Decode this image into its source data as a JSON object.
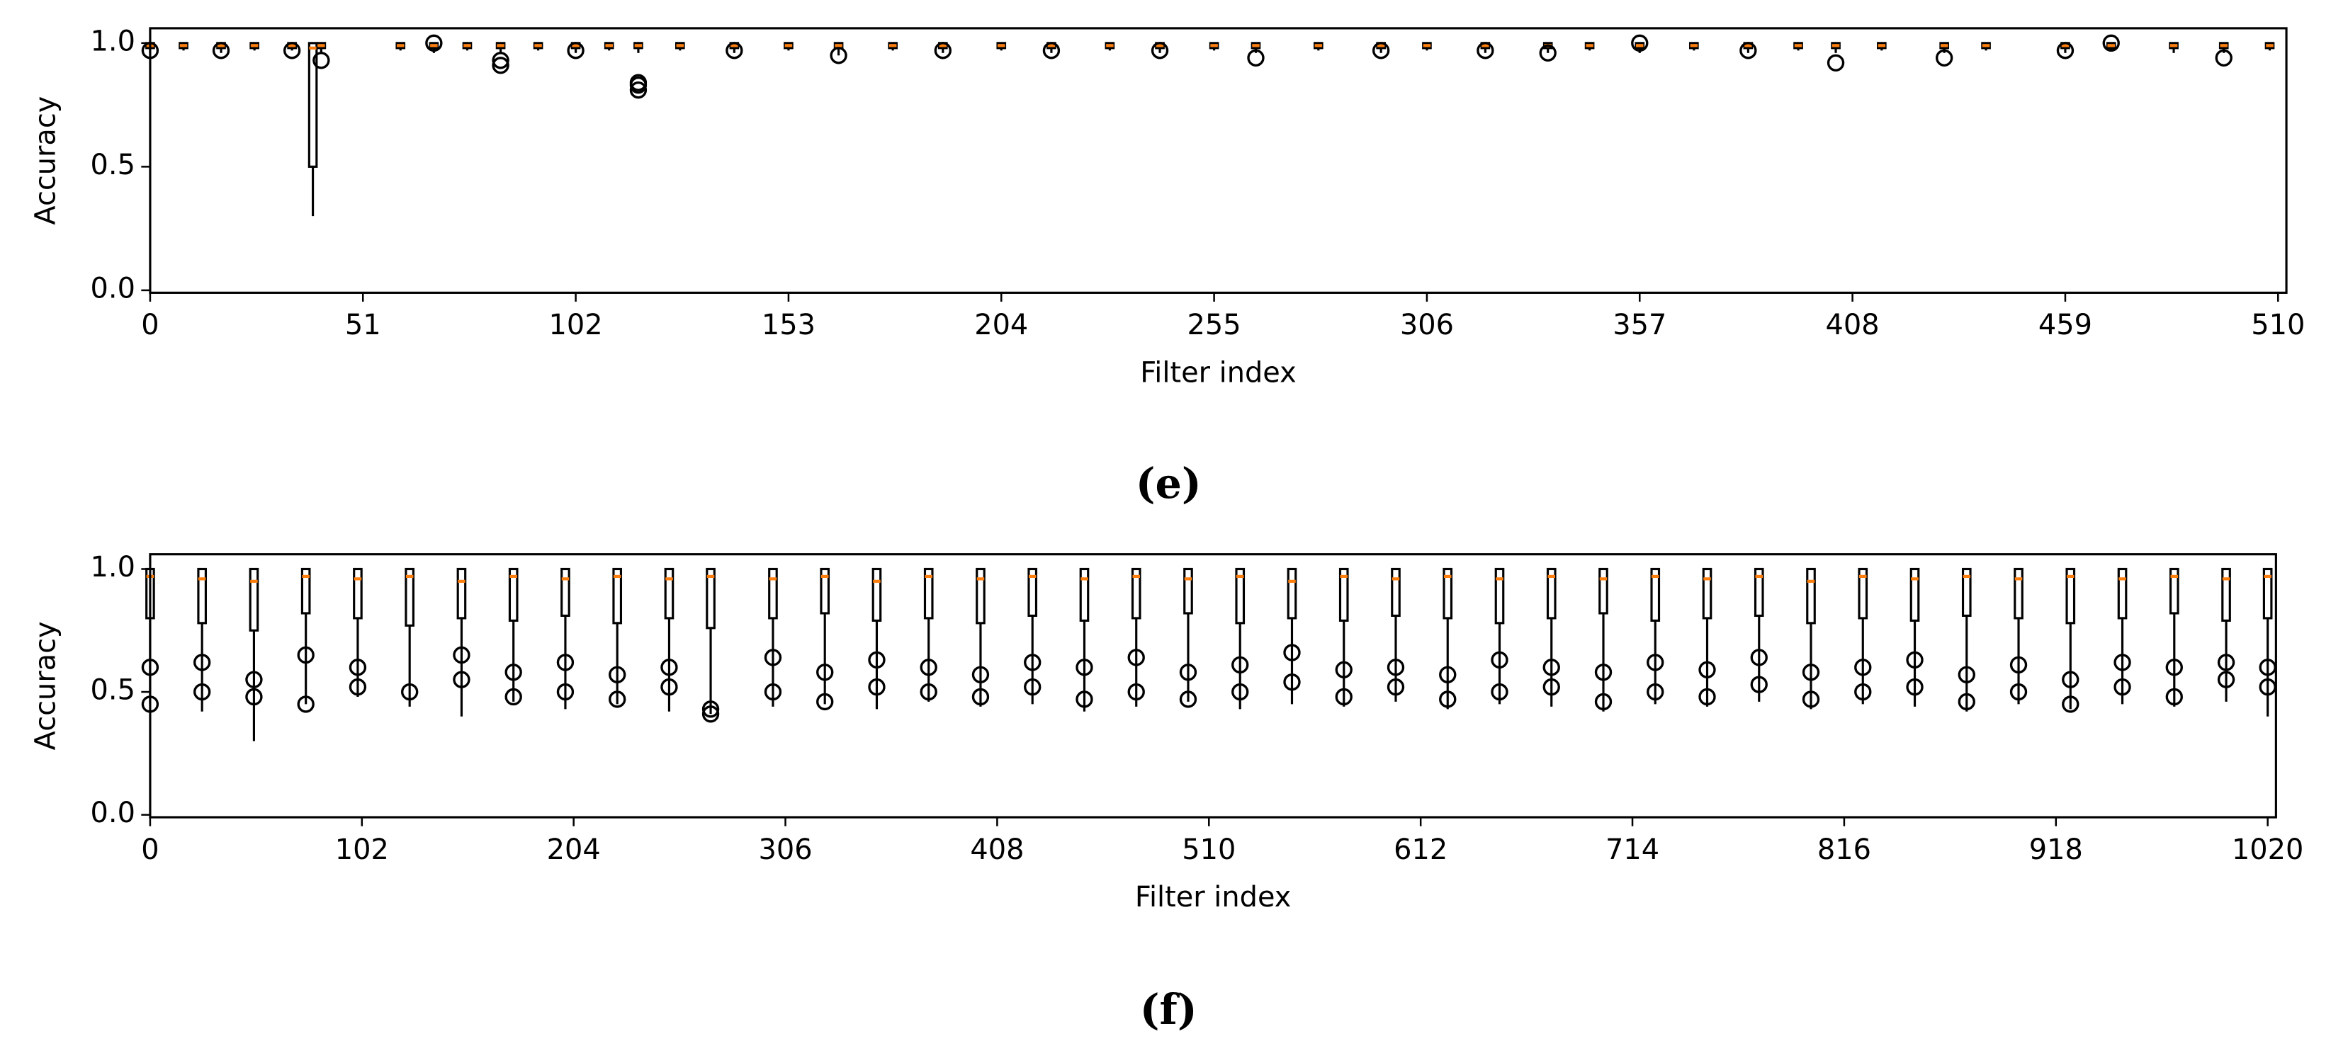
{
  "chart_data": [
    {
      "type": "box",
      "caption": "(e)",
      "xlabel": "Filter index",
      "ylabel": "Accuracy",
      "xlim": [
        0,
        512
      ],
      "xticks": [
        0,
        51,
        102,
        153,
        204,
        255,
        306,
        357,
        408,
        459,
        510
      ],
      "ylim": [
        -0.01,
        1.06
      ],
      "yticks": [
        {
          "value": 0,
          "label": "0.0"
        },
        {
          "value": 0.5,
          "label": "0.5"
        },
        {
          "value": 1,
          "label": "1.0"
        }
      ],
      "box_color": "#000000",
      "median_color": "#ff7f0e",
      "boxes": [
        {
          "x": 0,
          "whislo": 0.96,
          "q1": 0.98,
          "med": 0.99,
          "q3": 1.0,
          "whishi": 1.0,
          "fliers": [
            0.97
          ]
        },
        {
          "x": 8,
          "whislo": 0.97,
          "q1": 0.98,
          "med": 0.99,
          "q3": 1.0,
          "whishi": 1.0,
          "fliers": []
        },
        {
          "x": 17,
          "whislo": 0.96,
          "q1": 0.98,
          "med": 0.99,
          "q3": 1.0,
          "whishi": 1.0,
          "fliers": [
            0.97
          ]
        },
        {
          "x": 25,
          "whislo": 0.97,
          "q1": 0.98,
          "med": 0.99,
          "q3": 1.0,
          "whishi": 1.0,
          "fliers": []
        },
        {
          "x": 34,
          "whislo": 0.97,
          "q1": 0.98,
          "med": 0.99,
          "q3": 1.0,
          "whishi": 1.0,
          "fliers": [
            0.97
          ]
        },
        {
          "x": 39,
          "whislo": 0.3,
          "q1": 0.5,
          "med": 0.98,
          "q3": 1.0,
          "whishi": 1.0,
          "fliers": []
        },
        {
          "x": 41,
          "whislo": 0.96,
          "q1": 0.98,
          "med": 0.99,
          "q3": 1.0,
          "whishi": 1.0,
          "fliers": [
            0.93
          ]
        },
        {
          "x": 60,
          "whislo": 0.97,
          "q1": 0.98,
          "med": 0.99,
          "q3": 1.0,
          "whishi": 1.0,
          "fliers": []
        },
        {
          "x": 68,
          "whislo": 0.96,
          "q1": 0.98,
          "med": 0.99,
          "q3": 1.0,
          "whishi": 1.0,
          "fliers": [
            1.0
          ]
        },
        {
          "x": 76,
          "whislo": 0.97,
          "q1": 0.98,
          "med": 0.99,
          "q3": 1.0,
          "whishi": 1.0,
          "fliers": []
        },
        {
          "x": 84,
          "whislo": 0.96,
          "q1": 0.98,
          "med": 0.99,
          "q3": 1.0,
          "whishi": 1.0,
          "fliers": [
            0.91,
            0.93
          ]
        },
        {
          "x": 93,
          "whislo": 0.97,
          "q1": 0.98,
          "med": 0.99,
          "q3": 1.0,
          "whishi": 1.0,
          "fliers": []
        },
        {
          "x": 102,
          "whislo": 0.96,
          "q1": 0.98,
          "med": 0.99,
          "q3": 1.0,
          "whishi": 1.0,
          "fliers": [
            0.97
          ]
        },
        {
          "x": 110,
          "whislo": 0.97,
          "q1": 0.98,
          "med": 0.99,
          "q3": 1.0,
          "whishi": 1.0,
          "fliers": []
        },
        {
          "x": 117,
          "whislo": 0.96,
          "q1": 0.98,
          "med": 0.99,
          "q3": 1.0,
          "whishi": 1.0,
          "fliers": [
            0.81,
            0.83,
            0.84
          ]
        },
        {
          "x": 127,
          "whislo": 0.97,
          "q1": 0.98,
          "med": 0.99,
          "q3": 1.0,
          "whishi": 1.0,
          "fliers": []
        },
        {
          "x": 140,
          "whislo": 0.96,
          "q1": 0.98,
          "med": 0.99,
          "q3": 1.0,
          "whishi": 1.0,
          "fliers": [
            0.97
          ]
        },
        {
          "x": 153,
          "whislo": 0.97,
          "q1": 0.98,
          "med": 0.99,
          "q3": 1.0,
          "whishi": 1.0,
          "fliers": []
        },
        {
          "x": 165,
          "whislo": 0.95,
          "q1": 0.98,
          "med": 0.99,
          "q3": 1.0,
          "whishi": 1.0,
          "fliers": [
            0.95
          ]
        },
        {
          "x": 178,
          "whislo": 0.97,
          "q1": 0.98,
          "med": 0.99,
          "q3": 1.0,
          "whishi": 1.0,
          "fliers": []
        },
        {
          "x": 190,
          "whislo": 0.96,
          "q1": 0.98,
          "med": 0.99,
          "q3": 1.0,
          "whishi": 1.0,
          "fliers": [
            0.97
          ]
        },
        {
          "x": 204,
          "whislo": 0.97,
          "q1": 0.98,
          "med": 0.99,
          "q3": 1.0,
          "whishi": 1.0,
          "fliers": []
        },
        {
          "x": 216,
          "whislo": 0.96,
          "q1": 0.98,
          "med": 0.99,
          "q3": 1.0,
          "whishi": 1.0,
          "fliers": [
            0.97
          ]
        },
        {
          "x": 230,
          "whislo": 0.97,
          "q1": 0.98,
          "med": 0.99,
          "q3": 1.0,
          "whishi": 1.0,
          "fliers": []
        },
        {
          "x": 242,
          "whislo": 0.96,
          "q1": 0.98,
          "med": 0.99,
          "q3": 1.0,
          "whishi": 1.0,
          "fliers": [
            0.97
          ]
        },
        {
          "x": 255,
          "whislo": 0.97,
          "q1": 0.98,
          "med": 0.99,
          "q3": 1.0,
          "whishi": 1.0,
          "fliers": []
        },
        {
          "x": 265,
          "whislo": 0.96,
          "q1": 0.98,
          "med": 0.99,
          "q3": 1.0,
          "whishi": 1.0,
          "fliers": [
            0.94
          ]
        },
        {
          "x": 280,
          "whislo": 0.97,
          "q1": 0.98,
          "med": 0.99,
          "q3": 1.0,
          "whishi": 1.0,
          "fliers": []
        },
        {
          "x": 295,
          "whislo": 0.96,
          "q1": 0.98,
          "med": 0.99,
          "q3": 1.0,
          "whishi": 1.0,
          "fliers": [
            0.97
          ]
        },
        {
          "x": 306,
          "whislo": 0.97,
          "q1": 0.98,
          "med": 0.99,
          "q3": 1.0,
          "whishi": 1.0,
          "fliers": []
        },
        {
          "x": 320,
          "whislo": 0.96,
          "q1": 0.98,
          "med": 0.99,
          "q3": 1.0,
          "whishi": 1.0,
          "fliers": [
            0.97
          ]
        },
        {
          "x": 335,
          "whislo": 0.96,
          "q1": 0.98,
          "med": 0.99,
          "q3": 1.0,
          "whishi": 1.0,
          "fliers": [
            0.96
          ]
        },
        {
          "x": 345,
          "whislo": 0.97,
          "q1": 0.98,
          "med": 0.99,
          "q3": 1.0,
          "whishi": 1.0,
          "fliers": []
        },
        {
          "x": 357,
          "whislo": 0.96,
          "q1": 0.98,
          "med": 0.99,
          "q3": 1.0,
          "whishi": 1.0,
          "fliers": [
            1.0
          ]
        },
        {
          "x": 370,
          "whislo": 0.97,
          "q1": 0.98,
          "med": 0.99,
          "q3": 1.0,
          "whishi": 1.0,
          "fliers": []
        },
        {
          "x": 383,
          "whislo": 0.96,
          "q1": 0.98,
          "med": 0.99,
          "q3": 1.0,
          "whishi": 1.0,
          "fliers": [
            0.97
          ]
        },
        {
          "x": 395,
          "whislo": 0.97,
          "q1": 0.98,
          "med": 0.99,
          "q3": 1.0,
          "whishi": 1.0,
          "fliers": []
        },
        {
          "x": 404,
          "whislo": 0.96,
          "q1": 0.98,
          "med": 0.99,
          "q3": 1.0,
          "whishi": 1.0,
          "fliers": [
            0.92
          ]
        },
        {
          "x": 415,
          "whislo": 0.97,
          "q1": 0.98,
          "med": 0.99,
          "q3": 1.0,
          "whishi": 1.0,
          "fliers": []
        },
        {
          "x": 430,
          "whislo": 0.96,
          "q1": 0.98,
          "med": 0.99,
          "q3": 1.0,
          "whishi": 1.0,
          "fliers": [
            0.94
          ]
        },
        {
          "x": 440,
          "whislo": 0.97,
          "q1": 0.98,
          "med": 0.99,
          "q3": 1.0,
          "whishi": 1.0,
          "fliers": []
        },
        {
          "x": 459,
          "whislo": 0.96,
          "q1": 0.98,
          "med": 0.99,
          "q3": 1.0,
          "whishi": 1.0,
          "fliers": [
            0.97
          ]
        },
        {
          "x": 470,
          "whislo": 0.97,
          "q1": 0.98,
          "med": 0.99,
          "q3": 1.0,
          "whishi": 1.0,
          "fliers": [
            1.0
          ]
        },
        {
          "x": 485,
          "whislo": 0.96,
          "q1": 0.98,
          "med": 0.99,
          "q3": 1.0,
          "whishi": 1.0,
          "fliers": []
        },
        {
          "x": 497,
          "whislo": 0.96,
          "q1": 0.98,
          "med": 0.99,
          "q3": 1.0,
          "whishi": 1.0,
          "fliers": [
            0.94
          ]
        },
        {
          "x": 508,
          "whislo": 0.97,
          "q1": 0.98,
          "med": 0.99,
          "q3": 1.0,
          "whishi": 1.0,
          "fliers": []
        }
      ]
    },
    {
      "type": "box",
      "caption": "(f)",
      "xlabel": "Filter index",
      "ylabel": "Accuracy",
      "xlim": [
        0,
        1024
      ],
      "xticks": [
        0,
        102,
        204,
        306,
        408,
        510,
        612,
        714,
        816,
        918,
        1020
      ],
      "ylim": [
        -0.01,
        1.06
      ],
      "yticks": [
        {
          "value": 0,
          "label": "0.0"
        },
        {
          "value": 0.5,
          "label": "0.5"
        },
        {
          "value": 1,
          "label": "1.0"
        }
      ],
      "box_color": "#000000",
      "median_color": "#ff7f0e",
      "boxes": [
        {
          "x": 0,
          "whislo": 0.45,
          "q1": 0.8,
          "med": 0.97,
          "q3": 1.0,
          "whishi": 1.0,
          "fliers": [
            0.45,
            0.6
          ]
        },
        {
          "x": 25,
          "whislo": 0.42,
          "q1": 0.78,
          "med": 0.96,
          "q3": 1.0,
          "whishi": 1.0,
          "fliers": [
            0.5,
            0.62
          ]
        },
        {
          "x": 50,
          "whislo": 0.3,
          "q1": 0.75,
          "med": 0.95,
          "q3": 1.0,
          "whishi": 1.0,
          "fliers": [
            0.48,
            0.55
          ]
        },
        {
          "x": 75,
          "whislo": 0.45,
          "q1": 0.82,
          "med": 0.97,
          "q3": 1.0,
          "whishi": 1.0,
          "fliers": [
            0.45,
            0.65
          ]
        },
        {
          "x": 100,
          "whislo": 0.48,
          "q1": 0.8,
          "med": 0.96,
          "q3": 1.0,
          "whishi": 1.0,
          "fliers": [
            0.52,
            0.6
          ]
        },
        {
          "x": 125,
          "whislo": 0.44,
          "q1": 0.77,
          "med": 0.97,
          "q3": 1.0,
          "whishi": 1.0,
          "fliers": [
            0.5
          ]
        },
        {
          "x": 150,
          "whislo": 0.4,
          "q1": 0.8,
          "med": 0.95,
          "q3": 1.0,
          "whishi": 1.0,
          "fliers": [
            0.55,
            0.65
          ]
        },
        {
          "x": 175,
          "whislo": 0.46,
          "q1": 0.79,
          "med": 0.97,
          "q3": 1.0,
          "whishi": 1.0,
          "fliers": [
            0.48,
            0.58
          ]
        },
        {
          "x": 200,
          "whislo": 0.43,
          "q1": 0.81,
          "med": 0.96,
          "q3": 1.0,
          "whishi": 1.0,
          "fliers": [
            0.5,
            0.62
          ]
        },
        {
          "x": 225,
          "whislo": 0.45,
          "q1": 0.78,
          "med": 0.97,
          "q3": 1.0,
          "whishi": 1.0,
          "fliers": [
            0.47,
            0.57
          ]
        },
        {
          "x": 250,
          "whislo": 0.42,
          "q1": 0.8,
          "med": 0.96,
          "q3": 1.0,
          "whishi": 1.0,
          "fliers": [
            0.52,
            0.6
          ]
        },
        {
          "x": 270,
          "whislo": 0.41,
          "q1": 0.76,
          "med": 0.97,
          "q3": 1.0,
          "whishi": 1.0,
          "fliers": [
            0.41,
            0.43
          ]
        },
        {
          "x": 300,
          "whislo": 0.44,
          "q1": 0.8,
          "med": 0.96,
          "q3": 1.0,
          "whishi": 1.0,
          "fliers": [
            0.5,
            0.64
          ]
        },
        {
          "x": 325,
          "whislo": 0.45,
          "q1": 0.82,
          "med": 0.97,
          "q3": 1.0,
          "whishi": 1.0,
          "fliers": [
            0.46,
            0.58
          ]
        },
        {
          "x": 350,
          "whislo": 0.43,
          "q1": 0.79,
          "med": 0.95,
          "q3": 1.0,
          "whishi": 1.0,
          "fliers": [
            0.52,
            0.63
          ]
        },
        {
          "x": 375,
          "whislo": 0.46,
          "q1": 0.8,
          "med": 0.97,
          "q3": 1.0,
          "whishi": 1.0,
          "fliers": [
            0.5,
            0.6
          ]
        },
        {
          "x": 400,
          "whislo": 0.44,
          "q1": 0.78,
          "med": 0.96,
          "q3": 1.0,
          "whishi": 1.0,
          "fliers": [
            0.48,
            0.57
          ]
        },
        {
          "x": 425,
          "whislo": 0.45,
          "q1": 0.81,
          "med": 0.97,
          "q3": 1.0,
          "whishi": 1.0,
          "fliers": [
            0.52,
            0.62
          ]
        },
        {
          "x": 450,
          "whislo": 0.42,
          "q1": 0.79,
          "med": 0.96,
          "q3": 1.0,
          "whishi": 1.0,
          "fliers": [
            0.47,
            0.6
          ]
        },
        {
          "x": 475,
          "whislo": 0.44,
          "q1": 0.8,
          "med": 0.97,
          "q3": 1.0,
          "whishi": 1.0,
          "fliers": [
            0.5,
            0.64
          ]
        },
        {
          "x": 500,
          "whislo": 0.46,
          "q1": 0.82,
          "med": 0.96,
          "q3": 1.0,
          "whishi": 1.0,
          "fliers": [
            0.47,
            0.58
          ]
        },
        {
          "x": 525,
          "whislo": 0.43,
          "q1": 0.78,
          "med": 0.97,
          "q3": 1.0,
          "whishi": 1.0,
          "fliers": [
            0.5,
            0.61
          ]
        },
        {
          "x": 550,
          "whislo": 0.45,
          "q1": 0.8,
          "med": 0.95,
          "q3": 1.0,
          "whishi": 1.0,
          "fliers": [
            0.54,
            0.66
          ]
        },
        {
          "x": 575,
          "whislo": 0.44,
          "q1": 0.79,
          "med": 0.97,
          "q3": 1.0,
          "whishi": 1.0,
          "fliers": [
            0.48,
            0.59
          ]
        },
        {
          "x": 600,
          "whislo": 0.46,
          "q1": 0.81,
          "med": 0.96,
          "q3": 1.0,
          "whishi": 1.0,
          "fliers": [
            0.52,
            0.6
          ]
        },
        {
          "x": 625,
          "whislo": 0.43,
          "q1": 0.8,
          "med": 0.97,
          "q3": 1.0,
          "whishi": 1.0,
          "fliers": [
            0.47,
            0.57
          ]
        },
        {
          "x": 650,
          "whislo": 0.45,
          "q1": 0.78,
          "med": 0.96,
          "q3": 1.0,
          "whishi": 1.0,
          "fliers": [
            0.5,
            0.63
          ]
        },
        {
          "x": 675,
          "whislo": 0.44,
          "q1": 0.8,
          "med": 0.97,
          "q3": 1.0,
          "whishi": 1.0,
          "fliers": [
            0.52,
            0.6
          ]
        },
        {
          "x": 700,
          "whislo": 0.42,
          "q1": 0.82,
          "med": 0.96,
          "q3": 1.0,
          "whishi": 1.0,
          "fliers": [
            0.46,
            0.58
          ]
        },
        {
          "x": 725,
          "whislo": 0.45,
          "q1": 0.79,
          "med": 0.97,
          "q3": 1.0,
          "whishi": 1.0,
          "fliers": [
            0.5,
            0.62
          ]
        },
        {
          "x": 750,
          "whislo": 0.44,
          "q1": 0.8,
          "med": 0.96,
          "q3": 1.0,
          "whishi": 1.0,
          "fliers": [
            0.48,
            0.59
          ]
        },
        {
          "x": 775,
          "whislo": 0.46,
          "q1": 0.81,
          "med": 0.97,
          "q3": 1.0,
          "whishi": 1.0,
          "fliers": [
            0.53,
            0.64
          ]
        },
        {
          "x": 800,
          "whislo": 0.43,
          "q1": 0.78,
          "med": 0.95,
          "q3": 1.0,
          "whishi": 1.0,
          "fliers": [
            0.47,
            0.58
          ]
        },
        {
          "x": 825,
          "whislo": 0.45,
          "q1": 0.8,
          "med": 0.97,
          "q3": 1.0,
          "whishi": 1.0,
          "fliers": [
            0.5,
            0.6
          ]
        },
        {
          "x": 850,
          "whislo": 0.44,
          "q1": 0.79,
          "med": 0.96,
          "q3": 1.0,
          "whishi": 1.0,
          "fliers": [
            0.52,
            0.63
          ]
        },
        {
          "x": 875,
          "whislo": 0.42,
          "q1": 0.81,
          "med": 0.97,
          "q3": 1.0,
          "whishi": 1.0,
          "fliers": [
            0.46,
            0.57
          ]
        },
        {
          "x": 900,
          "whislo": 0.45,
          "q1": 0.8,
          "med": 0.96,
          "q3": 1.0,
          "whishi": 1.0,
          "fliers": [
            0.5,
            0.61
          ]
        },
        {
          "x": 925,
          "whislo": 0.43,
          "q1": 0.78,
          "med": 0.97,
          "q3": 1.0,
          "whishi": 1.0,
          "fliers": [
            0.45,
            0.55
          ]
        },
        {
          "x": 950,
          "whislo": 0.45,
          "q1": 0.8,
          "med": 0.96,
          "q3": 1.0,
          "whishi": 1.0,
          "fliers": [
            0.52,
            0.62
          ]
        },
        {
          "x": 975,
          "whislo": 0.44,
          "q1": 0.82,
          "med": 0.97,
          "q3": 1.0,
          "whishi": 1.0,
          "fliers": [
            0.48,
            0.6
          ]
        },
        {
          "x": 1000,
          "whislo": 0.46,
          "q1": 0.79,
          "med": 0.96,
          "q3": 1.0,
          "whishi": 1.0,
          "fliers": [
            0.55,
            0.62
          ]
        },
        {
          "x": 1020,
          "whislo": 0.4,
          "q1": 0.8,
          "med": 0.97,
          "q3": 1.0,
          "whishi": 1.0,
          "fliers": [
            0.52,
            0.6
          ]
        }
      ]
    }
  ]
}
